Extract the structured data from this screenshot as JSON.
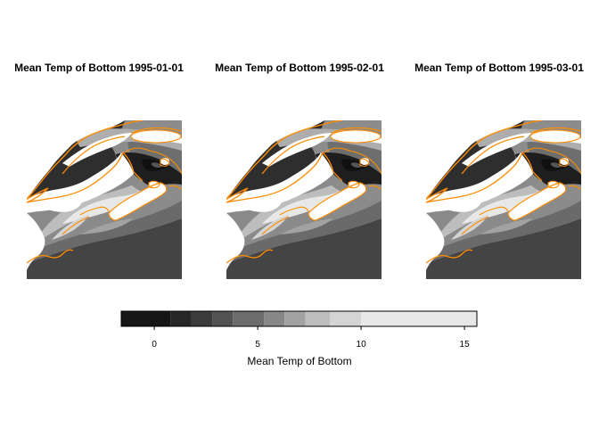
{
  "chart_data": {
    "type": "heatmap",
    "panels": [
      {
        "title": "Mean Temp of Bottom 1995-01-01"
      },
      {
        "title": "Mean Temp of Bottom 1995-02-01"
      },
      {
        "title": "Mean Temp of Bottom 1995-03-01"
      }
    ],
    "colorbar": {
      "label": "Mean Temp of Bottom",
      "range": [
        -1.6,
        15.6
      ],
      "ticks": [
        0,
        5,
        10,
        15
      ],
      "breaks": [
        -1.6,
        0.8,
        1.8,
        2.8,
        3.8,
        5.3,
        6.3,
        7.3,
        8.5,
        10.0,
        15.6
      ],
      "colors": [
        "#161616",
        "#262626",
        "#3b3b3b",
        "#525252",
        "#6c6c6c",
        "#878787",
        "#a2a2a2",
        "#bdbdbd",
        "#d4d4d4",
        "#e8e8e8"
      ]
    },
    "coastline_color": "#ff8c00",
    "land_color": "#ffffff"
  }
}
